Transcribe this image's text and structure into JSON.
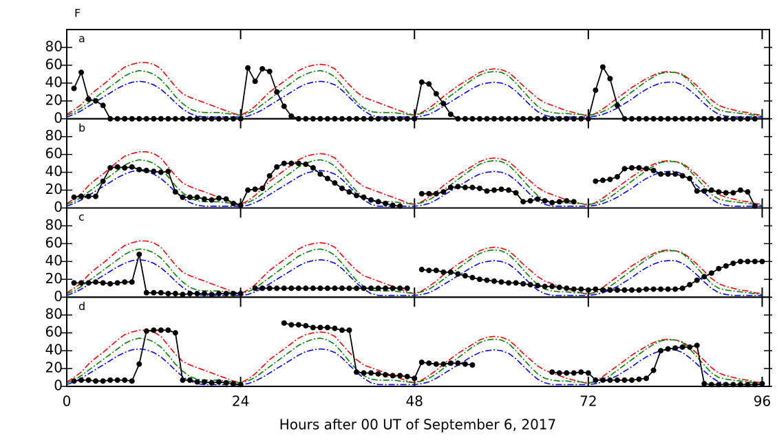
{
  "chart_data": {
    "type": "line",
    "title": "F",
    "xlabel": "Hours after 00 UT of September 6, 2017",
    "xlim": [
      0,
      97
    ],
    "xticks": [
      0,
      24,
      48,
      72,
      96
    ],
    "ylim": [
      0,
      100
    ],
    "yticks": [
      0,
      20,
      40,
      60,
      80
    ],
    "x": [
      0,
      1,
      2,
      3,
      4,
      5,
      6,
      7,
      8,
      9,
      10,
      11,
      12,
      13,
      14,
      15,
      16,
      17,
      18,
      19,
      20,
      21,
      22,
      23,
      24,
      25,
      26,
      27,
      28,
      29,
      30,
      31,
      32,
      33,
      34,
      35,
      36,
      37,
      38,
      39,
      40,
      41,
      42,
      43,
      44,
      45,
      46,
      47,
      48,
      49,
      50,
      51,
      52,
      53,
      54,
      55,
      56,
      57,
      58,
      59,
      60,
      61,
      62,
      63,
      64,
      65,
      66,
      67,
      68,
      69,
      70,
      71,
      72,
      73,
      74,
      75,
      76,
      77,
      78,
      79,
      80,
      81,
      82,
      83,
      84,
      85,
      86,
      87,
      88,
      89,
      90,
      91,
      92,
      93,
      94,
      95,
      96
    ],
    "series": [
      {
        "color": "#ff0000",
        "values": [
          5,
          10,
          16,
          25,
          32,
          38,
          45,
          52,
          58,
          61,
          63,
          63,
          61,
          56,
          46,
          36,
          28,
          24,
          21,
          18,
          15,
          12,
          9,
          6,
          4,
          8,
          14,
          22,
          30,
          36,
          42,
          48,
          54,
          58,
          60,
          61,
          60,
          56,
          47,
          38,
          30,
          24,
          21,
          18,
          15,
          12,
          9,
          6,
          4,
          7,
          12,
          18,
          25,
          31,
          37,
          42,
          47,
          52,
          55,
          56,
          55,
          52,
          45,
          37,
          30,
          23,
          18,
          15,
          12,
          9,
          7,
          5,
          3,
          6,
          11,
          17,
          23,
          29,
          35,
          40,
          45,
          49,
          52,
          53,
          52,
          50,
          44,
          37,
          29,
          21,
          15,
          12,
          10,
          8,
          7,
          5,
          4
        ]
      },
      {
        "color": "#008000",
        "values": [
          4,
          7,
          12,
          18,
          24,
          30,
          36,
          42,
          48,
          52,
          54,
          53,
          50,
          44,
          35,
          25,
          17,
          11,
          8,
          7,
          7,
          7,
          6,
          5,
          4,
          6,
          10,
          16,
          22,
          28,
          34,
          40,
          46,
          50,
          53,
          54,
          52,
          47,
          38,
          28,
          19,
          12,
          8,
          7,
          7,
          7,
          6,
          5,
          4,
          6,
          9,
          14,
          20,
          26,
          32,
          38,
          44,
          49,
          52,
          53,
          52,
          48,
          40,
          31,
          22,
          14,
          9,
          7,
          6,
          6,
          5,
          5,
          4,
          5,
          8,
          12,
          18,
          24,
          30,
          36,
          42,
          47,
          51,
          52,
          52,
          49,
          42,
          33,
          24,
          15,
          10,
          8,
          7,
          6,
          5,
          4,
          3
        ]
      },
      {
        "color": "#0000ff",
        "values": [
          2,
          5,
          9,
          14,
          19,
          24,
          29,
          34,
          38,
          41,
          42,
          41,
          38,
          33,
          26,
          18,
          11,
          6,
          3,
          2,
          2,
          2,
          2,
          2,
          2,
          3,
          6,
          10,
          15,
          20,
          25,
          30,
          35,
          39,
          41,
          42,
          41,
          38,
          32,
          24,
          16,
          9,
          4,
          2,
          2,
          2,
          2,
          2,
          2,
          3,
          5,
          9,
          14,
          19,
          24,
          29,
          34,
          38,
          40,
          41,
          40,
          37,
          31,
          23,
          15,
          8,
          4,
          2,
          2,
          2,
          2,
          2,
          2,
          3,
          5,
          8,
          12,
          17,
          22,
          28,
          33,
          37,
          40,
          41,
          41,
          38,
          32,
          25,
          17,
          10,
          5,
          3,
          2,
          2,
          2,
          2,
          2
        ]
      }
    ],
    "panels": [
      {
        "label": "a",
        "color": "#000000",
        "values": [
          null,
          34,
          52,
          22,
          20,
          15,
          0,
          0,
          0,
          0,
          0,
          0,
          0,
          0,
          0,
          0,
          0,
          0,
          0,
          0,
          0,
          0,
          0,
          0,
          0,
          57,
          42,
          56,
          53,
          30,
          14,
          3,
          0,
          0,
          0,
          0,
          0,
          0,
          0,
          0,
          0,
          0,
          0,
          0,
          0,
          0,
          0,
          0,
          0,
          41,
          39,
          28,
          17,
          5,
          0,
          0,
          0,
          0,
          0,
          0,
          0,
          0,
          0,
          0,
          0,
          0,
          0,
          0,
          0,
          0,
          0,
          0,
          0,
          32,
          58,
          45,
          15,
          0,
          0,
          0,
          0,
          0,
          0,
          0,
          0,
          0,
          0,
          0,
          0,
          0,
          0,
          0,
          0,
          0,
          0,
          0,
          null
        ]
      },
      {
        "label": "b",
        "color": "#000000",
        "values": [
          null,
          12,
          13,
          13,
          13,
          30,
          45,
          46,
          45,
          46,
          43,
          42,
          41,
          40,
          41,
          18,
          12,
          12,
          12,
          10,
          9,
          11,
          10,
          5,
          3,
          20,
          21,
          22,
          36,
          46,
          50,
          50,
          50,
          49,
          45,
          38,
          33,
          28,
          22,
          18,
          14,
          12,
          9,
          7,
          5,
          3,
          2,
          null,
          null,
          16,
          16,
          16,
          18,
          23,
          24,
          23,
          23,
          22,
          19,
          20,
          21,
          20,
          17,
          7,
          8,
          10,
          8,
          6,
          7,
          8,
          7,
          null,
          null,
          30,
          31,
          32,
          35,
          44,
          45,
          45,
          44,
          42,
          38,
          38,
          38,
          36,
          33,
          19,
          19,
          20,
          18,
          17,
          17,
          20,
          18,
          2,
          null
        ]
      },
      {
        "label": "c",
        "color": "#000000",
        "values": [
          null,
          16,
          16,
          16,
          17,
          16,
          15,
          16,
          17,
          17,
          48,
          5,
          5,
          5,
          4,
          4,
          3,
          4,
          4,
          4,
          3,
          4,
          4,
          4,
          4,
          null,
          10,
          10,
          10,
          10,
          10,
          10,
          10,
          10,
          10,
          10,
          10,
          10,
          10,
          10,
          10,
          10,
          10,
          10,
          10,
          10,
          10,
          10,
          null,
          31,
          30,
          30,
          28,
          28,
          26,
          24,
          22,
          20,
          19,
          18,
          17,
          16,
          16,
          15,
          14,
          13,
          12,
          12,
          11,
          10,
          9,
          9,
          8,
          9,
          8,
          8,
          8,
          8,
          8,
          8,
          9,
          9,
          9,
          9,
          9,
          10,
          14,
          19,
          23,
          27,
          32,
          35,
          38,
          40,
          40,
          40,
          40
        ]
      },
      {
        "label": "d",
        "color": "#000000",
        "values": [
          null,
          6,
          7,
          7,
          6,
          6,
          7,
          7,
          7,
          6,
          25,
          62,
          63,
          63,
          63,
          60,
          7,
          7,
          5,
          5,
          4,
          5,
          4,
          3,
          2,
          null,
          null,
          null,
          null,
          null,
          71,
          69,
          69,
          68,
          66,
          66,
          66,
          65,
          63,
          63,
          16,
          15,
          15,
          14,
          13,
          12,
          12,
          11,
          9,
          27,
          26,
          25,
          25,
          26,
          26,
          25,
          24,
          null,
          null,
          null,
          null,
          null,
          null,
          null,
          null,
          null,
          null,
          16,
          15,
          15,
          15,
          16,
          15,
          7,
          7,
          7,
          7,
          7,
          7,
          8,
          9,
          18,
          40,
          42,
          43,
          44,
          44,
          46,
          3,
          2,
          2,
          2,
          2,
          2,
          2,
          2,
          3
        ]
      }
    ]
  }
}
